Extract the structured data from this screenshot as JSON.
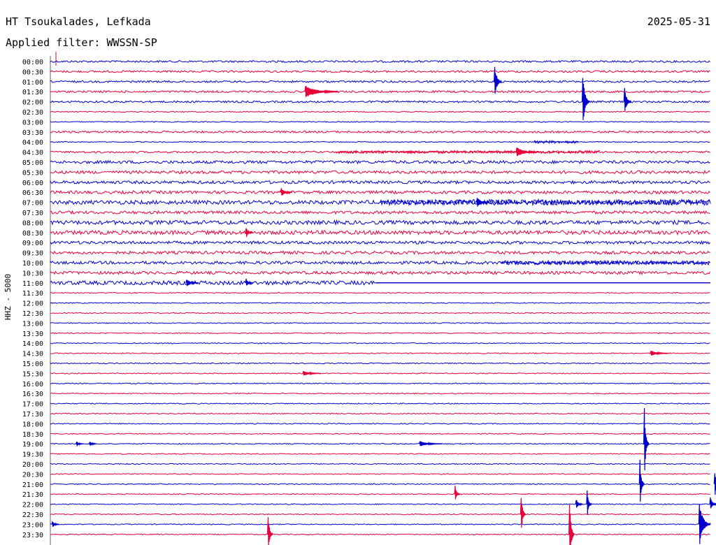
{
  "header": {
    "station": "HT Tsoukalades, Lefkada",
    "date": "2025-05-31",
    "filter": "Applied filter: WWSSN-SP"
  },
  "chart_data": {
    "type": "line",
    "title": "HT Tsoukalades, Lefkada",
    "ylabel": "HHZ - 5000",
    "row_labels": [
      "00:00",
      "00:30",
      "01:00",
      "01:30",
      "02:00",
      "02:30",
      "03:00",
      "03:30",
      "04:00",
      "04:30",
      "05:00",
      "05:30",
      "06:00",
      "06:30",
      "07:00",
      "07:30",
      "08:00",
      "08:30",
      "09:00",
      "09:30",
      "10:00",
      "10:30",
      "11:00",
      "11:30",
      "12:00",
      "12:30",
      "13:00",
      "13:30",
      "14:00",
      "14:30",
      "15:00",
      "15:30",
      "16:00",
      "16:30",
      "17:00",
      "17:30",
      "18:00",
      "18:30",
      "19:00",
      "19:30",
      "20:00",
      "20:30",
      "21:00",
      "21:30",
      "22:00",
      "22:30",
      "23:00",
      "23:30"
    ],
    "series_colors": [
      "#0000cc",
      "#e8003a"
    ],
    "noise_level": [
      2,
      2,
      2,
      2,
      2,
      1,
      1,
      2,
      1,
      2,
      3,
      3,
      3,
      3,
      4,
      3,
      4,
      4,
      3,
      3,
      3,
      3,
      4,
      1,
      1,
      1,
      1,
      1,
      1,
      1,
      1,
      1,
      1,
      1,
      1,
      1,
      1,
      1,
      1,
      1,
      1,
      1,
      1,
      1,
      1,
      1,
      1,
      1
    ],
    "events": [
      {
        "row": 2,
        "minute": 20.2,
        "amplitude": 25,
        "duration": 0.3
      },
      {
        "row": 3,
        "minute": 11.6,
        "amplitude": 9,
        "duration": 1.5
      },
      {
        "row": 4,
        "minute": 24.2,
        "amplitude": 42,
        "duration": 0.3
      },
      {
        "row": 4,
        "minute": 26.1,
        "amplitude": 20,
        "duration": 0.3
      },
      {
        "row": 9,
        "minute": 21.2,
        "amplitude": 7,
        "duration": 1.0
      },
      {
        "row": 13,
        "minute": 10.5,
        "amplitude": 6,
        "duration": 0.5
      },
      {
        "row": 14,
        "minute": 19.4,
        "amplitude": 8,
        "duration": 0.5
      },
      {
        "row": 17,
        "minute": 8.9,
        "amplitude": 8,
        "duration": 0.3
      },
      {
        "row": 22,
        "minute": 6.2,
        "amplitude": 6,
        "duration": 0.5
      },
      {
        "row": 22,
        "minute": 8.9,
        "amplitude": 6,
        "duration": 0.3
      },
      {
        "row": 29,
        "minute": 27.3,
        "amplitude": 4,
        "duration": 0.8
      },
      {
        "row": 31,
        "minute": 11.5,
        "amplitude": 4,
        "duration": 0.8
      },
      {
        "row": 38,
        "minute": 1.2,
        "amplitude": 4,
        "duration": 0.3
      },
      {
        "row": 38,
        "minute": 1.8,
        "amplitude": 4,
        "duration": 0.3
      },
      {
        "row": 38,
        "minute": 16.8,
        "amplitude": 4,
        "duration": 1.0
      },
      {
        "row": 38,
        "minute": 27.0,
        "amplitude": 52,
        "duration": 0.2
      },
      {
        "row": 42,
        "minute": 26.8,
        "amplitude": 35,
        "duration": 0.2
      },
      {
        "row": 42,
        "minute": 30.2,
        "amplitude": 20,
        "duration": 0.3
      },
      {
        "row": 43,
        "minute": 18.4,
        "amplitude": 12,
        "duration": 0.2
      },
      {
        "row": 44,
        "minute": 23.9,
        "amplitude": 8,
        "duration": 0.3
      },
      {
        "row": 44,
        "minute": 24.4,
        "amplitude": 20,
        "duration": 0.2
      },
      {
        "row": 44,
        "minute": 30.0,
        "amplitude": 10,
        "duration": 0.3
      },
      {
        "row": 45,
        "minute": 21.4,
        "amplitude": 30,
        "duration": 0.2
      },
      {
        "row": 46,
        "minute": 0.1,
        "amplitude": 5,
        "duration": 0.3
      },
      {
        "row": 46,
        "minute": 29.5,
        "amplitude": 32,
        "duration": 0.5
      },
      {
        "row": 47,
        "minute": 9.9,
        "amplitude": 30,
        "duration": 0.2
      },
      {
        "row": 47,
        "minute": 23.6,
        "amplitude": 60,
        "duration": 0.2
      }
    ],
    "noise_bursts": [
      {
        "row": 14,
        "from": 15.0,
        "to": 30.5,
        "amplitude": 4
      },
      {
        "row": 20,
        "from": 20.5,
        "to": 30.5,
        "amplitude": 3
      },
      {
        "row": 8,
        "from": 22.0,
        "to": 24.0,
        "amplitude": 2
      },
      {
        "row": 9,
        "from": 13.0,
        "to": 25.0,
        "amplitude": 2
      }
    ],
    "trace_end_minute": {
      "11:00": 14.8
    }
  }
}
